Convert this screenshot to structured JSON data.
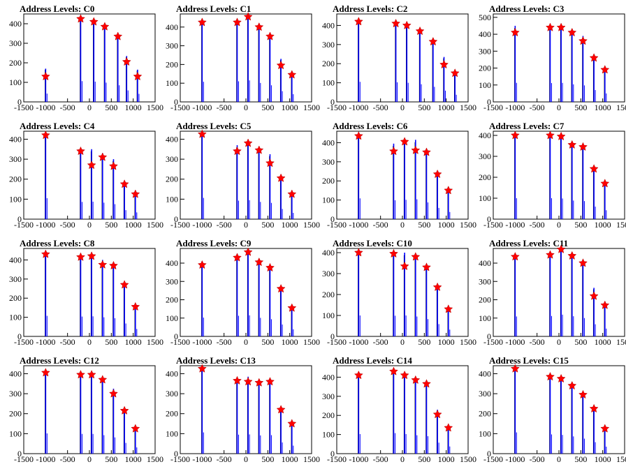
{
  "chart_data": [
    {
      "type": "bar",
      "title": "Address Levels: C0",
      "xlim": [
        -1500,
        1500
      ],
      "ylim": [
        0,
        450
      ],
      "xticks": [
        -1500,
        -1000,
        -500,
        0,
        500,
        1000,
        1500
      ],
      "yticks": [
        0,
        100,
        200,
        300,
        400
      ],
      "star_x": [
        -1000,
        -200,
        100,
        350,
        650,
        850,
        1100
      ],
      "star_y": [
        130,
        425,
        410,
        385,
        335,
        205,
        130
      ],
      "spikes": [
        {
          "x": -1000,
          "y": 170
        },
        {
          "x": -200,
          "y": 425
        },
        {
          "x": 100,
          "y": 415
        },
        {
          "x": 350,
          "y": 395
        },
        {
          "x": 650,
          "y": 340
        },
        {
          "x": 850,
          "y": 235
        },
        {
          "x": 1100,
          "y": 165
        }
      ]
    },
    {
      "type": "bar",
      "title": "Address Levels: C1",
      "xlim": [
        -1500,
        1500
      ],
      "ylim": [
        0,
        470
      ],
      "xticks": [
        -1500,
        -1000,
        -500,
        0,
        500,
        1000,
        1500
      ],
      "yticks": [
        0,
        100,
        200,
        300,
        400
      ],
      "star_x": [
        -1000,
        -200,
        50,
        300,
        550,
        800,
        1050
      ],
      "star_y": [
        425,
        425,
        455,
        400,
        350,
        195,
        145
      ],
      "spikes": [
        {
          "x": -1000,
          "y": 430
        },
        {
          "x": -200,
          "y": 440
        },
        {
          "x": 50,
          "y": 460
        },
        {
          "x": 300,
          "y": 405
        },
        {
          "x": 550,
          "y": 355
        },
        {
          "x": 800,
          "y": 230
        },
        {
          "x": 1050,
          "y": 165
        }
      ]
    },
    {
      "type": "bar",
      "title": "Address Levels: C2",
      "xlim": [
        -1500,
        1500
      ],
      "ylim": [
        0,
        460
      ],
      "xticks": [
        -1500,
        -1000,
        -500,
        0,
        500,
        1000,
        1500
      ],
      "yticks": [
        0,
        100,
        200,
        300,
        400
      ],
      "star_x": [
        -1000,
        -150,
        100,
        400,
        700,
        950,
        1200
      ],
      "star_y": [
        420,
        410,
        400,
        370,
        315,
        195,
        150
      ],
      "spikes": [
        {
          "x": -1000,
          "y": 420
        },
        {
          "x": -150,
          "y": 410
        },
        {
          "x": 100,
          "y": 400
        },
        {
          "x": 400,
          "y": 370
        },
        {
          "x": 700,
          "y": 315
        },
        {
          "x": 950,
          "y": 235
        },
        {
          "x": 1200,
          "y": 150
        }
      ]
    },
    {
      "type": "bar",
      "title": "Address Levels: C3",
      "xlim": [
        -1500,
        1500
      ],
      "ylim": [
        0,
        520
      ],
      "xticks": [
        -1500,
        -1000,
        -500,
        0,
        500,
        1000,
        1500
      ],
      "yticks": [
        0,
        100,
        200,
        300,
        400,
        500
      ],
      "star_x": [
        -1000,
        -200,
        50,
        300,
        550,
        800,
        1050
      ],
      "star_y": [
        410,
        440,
        440,
        410,
        360,
        260,
        190
      ],
      "spikes": [
        {
          "x": -1000,
          "y": 450
        },
        {
          "x": -200,
          "y": 445
        },
        {
          "x": 50,
          "y": 450
        },
        {
          "x": 300,
          "y": 415
        },
        {
          "x": 550,
          "y": 390
        },
        {
          "x": 800,
          "y": 280
        },
        {
          "x": 1050,
          "y": 200
        }
      ]
    },
    {
      "type": "bar",
      "title": "Address Levels: C4",
      "xlim": [
        -1500,
        1500
      ],
      "ylim": [
        0,
        440
      ],
      "xticks": [
        -1500,
        -1000,
        -500,
        0,
        500,
        1000,
        1500
      ],
      "yticks": [
        0,
        100,
        200,
        300,
        400
      ],
      "star_x": [
        -1000,
        -200,
        50,
        300,
        550,
        800,
        1050
      ],
      "star_y": [
        420,
        340,
        270,
        310,
        265,
        175,
        125
      ],
      "spikes": [
        {
          "x": -1000,
          "y": 420
        },
        {
          "x": -200,
          "y": 345
        },
        {
          "x": 50,
          "y": 350
        },
        {
          "x": 300,
          "y": 330
        },
        {
          "x": 550,
          "y": 300
        },
        {
          "x": 800,
          "y": 180
        },
        {
          "x": 1050,
          "y": 135
        }
      ]
    },
    {
      "type": "bar",
      "title": "Address Levels: C5",
      "xlim": [
        -1500,
        1500
      ],
      "ylim": [
        0,
        440
      ],
      "xticks": [
        -1500,
        -1000,
        -500,
        0,
        500,
        1000,
        1500
      ],
      "yticks": [
        0,
        100,
        200,
        300,
        400
      ],
      "star_x": [
        -1000,
        -200,
        50,
        300,
        550,
        800,
        1050
      ],
      "star_y": [
        425,
        340,
        380,
        345,
        280,
        205,
        125
      ],
      "spikes": [
        {
          "x": -1000,
          "y": 425
        },
        {
          "x": -200,
          "y": 370
        },
        {
          "x": 50,
          "y": 380
        },
        {
          "x": 300,
          "y": 345
        },
        {
          "x": 550,
          "y": 325
        },
        {
          "x": 800,
          "y": 205
        },
        {
          "x": 1050,
          "y": 125
        }
      ]
    },
    {
      "type": "bar",
      "title": "Address Levels: C6",
      "xlim": [
        -1500,
        1500
      ],
      "ylim": [
        0,
        460
      ],
      "xticks": [
        -1500,
        -1000,
        -500,
        0,
        500,
        1000,
        1500
      ],
      "yticks": [
        0,
        100,
        200,
        300,
        400
      ],
      "star_x": [
        -1000,
        -200,
        50,
        300,
        550,
        800,
        1050
      ],
      "star_y": [
        435,
        355,
        405,
        360,
        350,
        235,
        150
      ],
      "spikes": [
        {
          "x": -1000,
          "y": 435
        },
        {
          "x": -200,
          "y": 395
        },
        {
          "x": 50,
          "y": 405
        },
        {
          "x": 300,
          "y": 415
        },
        {
          "x": 550,
          "y": 350
        },
        {
          "x": 800,
          "y": 235
        },
        {
          "x": 1050,
          "y": 150
        }
      ]
    },
    {
      "type": "bar",
      "title": "Address Levels: C7",
      "xlim": [
        -1500,
        1500
      ],
      "ylim": [
        0,
        420
      ],
      "xticks": [
        -1500,
        -1000,
        -500,
        0,
        500,
        1000,
        1500
      ],
      "yticks": [
        0,
        100,
        200,
        300,
        400
      ],
      "star_x": [
        -1000,
        -200,
        50,
        300,
        550,
        800,
        1050
      ],
      "star_y": [
        400,
        400,
        395,
        355,
        345,
        240,
        170
      ],
      "spikes": [
        {
          "x": -1000,
          "y": 400
        },
        {
          "x": -200,
          "y": 400
        },
        {
          "x": 50,
          "y": 395
        },
        {
          "x": 300,
          "y": 355
        },
        {
          "x": 550,
          "y": 345
        },
        {
          "x": 800,
          "y": 240
        },
        {
          "x": 1050,
          "y": 170
        }
      ]
    },
    {
      "type": "bar",
      "title": "Address Levels: C8",
      "xlim": [
        -1500,
        1500
      ],
      "ylim": [
        0,
        460
      ],
      "xticks": [
        -1500,
        -1000,
        -500,
        0,
        500,
        1000,
        1500
      ],
      "yticks": [
        0,
        100,
        200,
        300,
        400
      ],
      "star_x": [
        -1000,
        -200,
        50,
        300,
        550,
        800,
        1050
      ],
      "star_y": [
        430,
        415,
        420,
        375,
        370,
        270,
        155
      ],
      "spikes": [
        {
          "x": -1000,
          "y": 430
        },
        {
          "x": -200,
          "y": 415
        },
        {
          "x": 50,
          "y": 420
        },
        {
          "x": 300,
          "y": 400
        },
        {
          "x": 550,
          "y": 380
        },
        {
          "x": 800,
          "y": 270
        },
        {
          "x": 1050,
          "y": 155
        }
      ]
    },
    {
      "type": "bar",
      "title": "Address Levels: C9",
      "xlim": [
        -1500,
        1500
      ],
      "ylim": [
        0,
        480
      ],
      "xticks": [
        -1500,
        -1000,
        -500,
        0,
        500,
        1000,
        1500
      ],
      "yticks": [
        0,
        100,
        200,
        300,
        400
      ],
      "star_x": [
        -1000,
        -200,
        50,
        300,
        550,
        800,
        1050
      ],
      "star_y": [
        390,
        430,
        460,
        405,
        375,
        260,
        155
      ],
      "spikes": [
        {
          "x": -1000,
          "y": 410
        },
        {
          "x": -200,
          "y": 450
        },
        {
          "x": 50,
          "y": 460
        },
        {
          "x": 300,
          "y": 405
        },
        {
          "x": 550,
          "y": 375
        },
        {
          "x": 800,
          "y": 260
        },
        {
          "x": 1050,
          "y": 155
        }
      ]
    },
    {
      "type": "bar",
      "title": "Address Levels: C10",
      "xlim": [
        -1500,
        1500
      ],
      "ylim": [
        0,
        420
      ],
      "xticks": [
        -1500,
        -1000,
        -500,
        0,
        500,
        1000,
        1500
      ],
      "yticks": [
        0,
        100,
        200,
        300,
        400
      ],
      "star_x": [
        -1000,
        -200,
        50,
        300,
        550,
        800,
        1050
      ],
      "star_y": [
        400,
        395,
        335,
        380,
        330,
        235,
        130
      ],
      "spikes": [
        {
          "x": -1000,
          "y": 400
        },
        {
          "x": -200,
          "y": 395
        },
        {
          "x": 50,
          "y": 400
        },
        {
          "x": 300,
          "y": 380
        },
        {
          "x": 550,
          "y": 330
        },
        {
          "x": 800,
          "y": 235
        },
        {
          "x": 1050,
          "y": 130
        }
      ]
    },
    {
      "type": "bar",
      "title": "Address Levels: C11",
      "xlim": [
        -1500,
        1500
      ],
      "ylim": [
        0,
        480
      ],
      "xticks": [
        -1500,
        -1000,
        -500,
        0,
        500,
        1000,
        1500
      ],
      "yticks": [
        0,
        100,
        200,
        300,
        400
      ],
      "star_x": [
        -1000,
        -200,
        50,
        300,
        550,
        800,
        1050
      ],
      "star_y": [
        435,
        445,
        475,
        440,
        400,
        220,
        170
      ],
      "spikes": [
        {
          "x": -1000,
          "y": 435
        },
        {
          "x": -200,
          "y": 445
        },
        {
          "x": 50,
          "y": 475
        },
        {
          "x": 300,
          "y": 440
        },
        {
          "x": 550,
          "y": 400
        },
        {
          "x": 800,
          "y": 265
        },
        {
          "x": 1050,
          "y": 170
        }
      ]
    },
    {
      "type": "bar",
      "title": "Address Levels: C12",
      "xlim": [
        -1500,
        1500
      ],
      "ylim": [
        0,
        440
      ],
      "xticks": [
        -1500,
        -1000,
        -500,
        0,
        500,
        1000,
        1500
      ],
      "yticks": [
        0,
        100,
        200,
        300,
        400
      ],
      "star_x": [
        -1000,
        -200,
        50,
        300,
        550,
        800,
        1050
      ],
      "star_y": [
        405,
        395,
        395,
        370,
        300,
        215,
        125
      ],
      "spikes": [
        {
          "x": -1000,
          "y": 405
        },
        {
          "x": -200,
          "y": 395
        },
        {
          "x": 50,
          "y": 395
        },
        {
          "x": 300,
          "y": 370
        },
        {
          "x": 550,
          "y": 325
        },
        {
          "x": 800,
          "y": 215
        },
        {
          "x": 1050,
          "y": 125
        }
      ]
    },
    {
      "type": "bar",
      "title": "Address Levels: C13",
      "xlim": [
        -1500,
        1500
      ],
      "ylim": [
        0,
        440
      ],
      "xticks": [
        -1500,
        -1000,
        -500,
        0,
        500,
        1000,
        1500
      ],
      "yticks": [
        0,
        100,
        200,
        300,
        400
      ],
      "star_x": [
        -1000,
        -200,
        50,
        300,
        550,
        800,
        1050
      ],
      "star_y": [
        425,
        365,
        360,
        355,
        360,
        220,
        150
      ],
      "spikes": [
        {
          "x": -1000,
          "y": 425
        },
        {
          "x": -200,
          "y": 380
        },
        {
          "x": 50,
          "y": 385
        },
        {
          "x": 300,
          "y": 365
        },
        {
          "x": 550,
          "y": 370
        },
        {
          "x": 800,
          "y": 225
        },
        {
          "x": 1050,
          "y": 160
        }
      ]
    },
    {
      "type": "bar",
      "title": "Address Levels: C14",
      "xlim": [
        -1500,
        1500
      ],
      "ylim": [
        0,
        460
      ],
      "xticks": [
        -1500,
        -1000,
        -500,
        0,
        500,
        1000,
        1500
      ],
      "yticks": [
        0,
        100,
        200,
        300,
        400
      ],
      "star_x": [
        -1000,
        -200,
        50,
        300,
        550,
        800,
        1050
      ],
      "star_y": [
        410,
        430,
        410,
        385,
        365,
        205,
        135
      ],
      "spikes": [
        {
          "x": -1000,
          "y": 410
        },
        {
          "x": -200,
          "y": 430
        },
        {
          "x": 50,
          "y": 410
        },
        {
          "x": 300,
          "y": 385
        },
        {
          "x": 550,
          "y": 365
        },
        {
          "x": 800,
          "y": 230
        },
        {
          "x": 1050,
          "y": 150
        }
      ]
    },
    {
      "type": "bar",
      "title": "Address Levels: C15",
      "xlim": [
        -1500,
        1500
      ],
      "ylim": [
        0,
        440
      ],
      "xticks": [
        -1500,
        -1000,
        -500,
        0,
        500,
        1000,
        1500
      ],
      "yticks": [
        0,
        100,
        200,
        300,
        400
      ],
      "star_x": [
        -1000,
        -200,
        50,
        300,
        550,
        800,
        1050
      ],
      "star_y": [
        425,
        385,
        375,
        340,
        295,
        225,
        125
      ],
      "spikes": [
        {
          "x": -1000,
          "y": 425
        },
        {
          "x": -200,
          "y": 385
        },
        {
          "x": 50,
          "y": 375
        },
        {
          "x": 300,
          "y": 345
        },
        {
          "x": 550,
          "y": 300
        },
        {
          "x": 800,
          "y": 230
        },
        {
          "x": 1050,
          "y": 140
        }
      ]
    }
  ],
  "colors": {
    "spike": "#0000ff",
    "spike_dark": "#000000",
    "star": "#ff0000",
    "axis": "#000000"
  }
}
